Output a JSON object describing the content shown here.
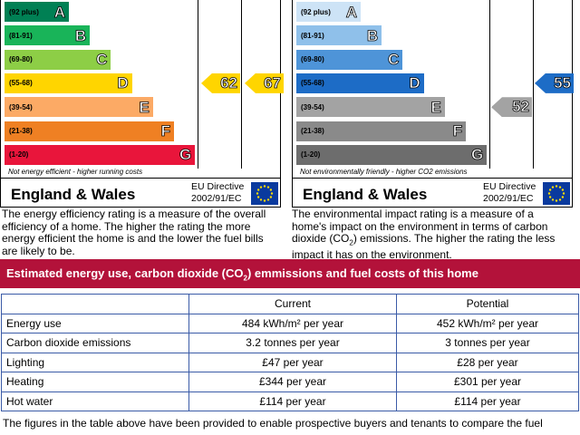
{
  "energy_chart": {
    "bands": [
      {
        "range": "(92 plus)",
        "letter": "A",
        "color": "#008054"
      },
      {
        "range": "(81-91)",
        "letter": "B",
        "color": "#19b459"
      },
      {
        "range": "(69-80)",
        "letter": "C",
        "color": "#8dce46"
      },
      {
        "range": "(55-68)",
        "letter": "D",
        "color": "#ffd500"
      },
      {
        "range": "(39-54)",
        "letter": "E",
        "color": "#fcaa65"
      },
      {
        "range": "(21-38)",
        "letter": "F",
        "color": "#ef8023"
      },
      {
        "range": "(1-20)",
        "letter": "G",
        "color": "#e9153b"
      }
    ],
    "bottom_note": "Not energy efficient - higher running costs",
    "current": {
      "value": "62",
      "band": "D",
      "color": "#ffd500"
    },
    "potential": {
      "value": "67",
      "band": "D",
      "color": "#ffd500"
    },
    "region": "England & Wales",
    "directive_line1": "EU Directive",
    "directive_line2": "2002/91/EC",
    "description": "The energy efficiency rating is a measure of the overall efficiency of a home. The higher the rating the more energy efficient the home is and the lower the fuel bills are likely to be."
  },
  "environment_chart": {
    "bands": [
      {
        "range": "(92 plus)",
        "letter": "A",
        "color": "#cde3f6"
      },
      {
        "range": "(81-91)",
        "letter": "B",
        "color": "#8fc0ea"
      },
      {
        "range": "(69-80)",
        "letter": "C",
        "color": "#4e94d8"
      },
      {
        "range": "(55-68)",
        "letter": "D",
        "color": "#1d6cc6"
      },
      {
        "range": "(39-54)",
        "letter": "E",
        "color": "#a3a3a3"
      },
      {
        "range": "(21-38)",
        "letter": "F",
        "color": "#8a8a8a"
      },
      {
        "range": "(1-20)",
        "letter": "G",
        "color": "#6d6d6d"
      }
    ],
    "bottom_note": "Not environmentally friendly - higher CO2 emissions",
    "current": {
      "value": "52",
      "band": "E",
      "color": "#a3a3a3"
    },
    "potential": {
      "value": "55",
      "band": "D",
      "color": "#1d6cc6"
    },
    "region": "England & Wales",
    "directive_line1": "EU Directive",
    "directive_line2": "2002/91/EC",
    "description_part1": "The environmental impact rating is a measure of a home's impact on the environment in terms of carbon dioxide (CO",
    "description_sub": "2",
    "description_part2": ") emissions. The higher the rating the less impact it has on the environment."
  },
  "banner": {
    "part1": "Estimated energy use, carbon dioxide (CO",
    "sub": "2",
    "part2": ") emmissions and fuel costs of this home"
  },
  "table": {
    "headers": [
      "",
      "Current",
      "Potential"
    ],
    "rows": [
      {
        "label": "Energy use",
        "current": "484 kWh/m² per year",
        "potential": "452 kWh/m² per year"
      },
      {
        "label": "Carbon dioxide emissions",
        "current": "3.2 tonnes per year",
        "potential": "3 tonnes per year"
      },
      {
        "label": "Lighting",
        "current": "£47 per year",
        "potential": "£28 per year"
      },
      {
        "label": "Heating",
        "current": "£344 per year",
        "potential": "£301 per year"
      },
      {
        "label": "Hot water",
        "current": "£114 per year",
        "potential": "£114 per year"
      }
    ]
  },
  "footer_text": "The figures in the table above have been provided to enable prospective buyers and tenants to compare the fuel"
}
